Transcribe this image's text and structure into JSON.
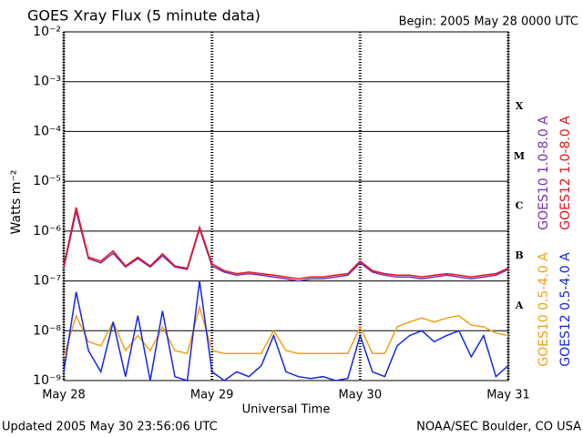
{
  "chart_data": {
    "type": "line",
    "title": "GOES Xray Flux (5 minute data)",
    "subtitle": "Begin:  2005 May 28 0000 UTC",
    "y_label": "Watts m⁻²",
    "x_label": "Universal Time",
    "footer_left": "Updated 2005 May 30 23:56:06 UTC",
    "footer_right": "NOAA/SEC Boulder, CO USA",
    "flare_classes": [
      "A",
      "B",
      "C",
      "M",
      "X"
    ],
    "log_y": true,
    "grid": true,
    "xlim": [
      0,
      72
    ],
    "xticks": [
      {
        "value": 0,
        "label": "May 28"
      },
      {
        "value": 24,
        "label": "May 29"
      },
      {
        "value": 48,
        "label": "May 30"
      },
      {
        "value": 72,
        "label": "May 31"
      }
    ],
    "ylim": [
      1e-09,
      0.01
    ],
    "yticks": [
      {
        "value": 1e-09,
        "label": "10⁻⁹"
      },
      {
        "value": 1e-08,
        "label": "10⁻⁸"
      },
      {
        "value": 1e-07,
        "label": "10⁻⁷"
      },
      {
        "value": 1e-06,
        "label": "10⁻⁶"
      },
      {
        "value": 1e-05,
        "label": "10⁻⁵"
      },
      {
        "value": 0.0001,
        "label": "10⁻⁴"
      },
      {
        "value": 0.001,
        "label": "10⁻³"
      },
      {
        "value": 0.01,
        "label": "10⁻²"
      }
    ],
    "x": [
      0,
      2,
      4,
      6,
      8,
      10,
      12,
      14,
      16,
      18,
      20,
      22,
      24,
      26,
      28,
      30,
      32,
      34,
      36,
      38,
      40,
      42,
      44,
      46,
      48,
      50,
      52,
      54,
      56,
      58,
      60,
      62,
      64,
      66,
      68,
      70,
      72
    ],
    "series": [
      {
        "name": "GOES10 1.0-8.0 A",
        "color": "#7a2fb5",
        "values": [
          1.8e-07,
          2.5e-06,
          2.8e-07,
          2.3e-07,
          3.6e-07,
          1.9e-07,
          2.8e-07,
          1.9e-07,
          3.2e-07,
          1.9e-07,
          1.7e-07,
          1.1e-06,
          2e-07,
          1.5e-07,
          1.3e-07,
          1.4e-07,
          1.3e-07,
          1.2e-07,
          1.1e-07,
          1e-07,
          1.1e-07,
          1.1e-07,
          1.2e-07,
          1.3e-07,
          2.3e-07,
          1.5e-07,
          1.3e-07,
          1.2e-07,
          1.2e-07,
          1.1e-07,
          1.2e-07,
          1.3e-07,
          1.2e-07,
          1.1e-07,
          1.2e-07,
          1.3e-07,
          1.7e-07
        ]
      },
      {
        "name": "GOES12 1.0-8.0 A",
        "color": "#e8141c",
        "values": [
          2e-07,
          3e-06,
          3e-07,
          2.5e-07,
          4e-07,
          2e-07,
          3e-07,
          2e-07,
          3.5e-07,
          2e-07,
          1.8e-07,
          1.2e-06,
          2.2e-07,
          1.6e-07,
          1.4e-07,
          1.5e-07,
          1.4e-07,
          1.3e-07,
          1.2e-07,
          1.1e-07,
          1.2e-07,
          1.2e-07,
          1.3e-07,
          1.4e-07,
          2.5e-07,
          1.6e-07,
          1.4e-07,
          1.3e-07,
          1.3e-07,
          1.2e-07,
          1.3e-07,
          1.4e-07,
          1.3e-07,
          1.2e-07,
          1.3e-07,
          1.4e-07,
          1.8e-07
        ]
      },
      {
        "name": "GOES10 0.5-4.0 A",
        "color": "#f0a018",
        "values": [
          3e-09,
          2e-08,
          6e-09,
          5e-09,
          1.5e-08,
          4e-09,
          8e-09,
          4e-09,
          1.2e-08,
          4e-09,
          3.5e-09,
          3e-08,
          4e-09,
          3.5e-09,
          3.5e-09,
          3.5e-09,
          3.5e-09,
          1e-08,
          4e-09,
          3.5e-09,
          3.5e-09,
          3.5e-09,
          3.5e-09,
          3.5e-09,
          1.2e-08,
          3.5e-09,
          3.5e-09,
          1.2e-08,
          1.5e-08,
          1.8e-08,
          1.5e-08,
          1.8e-08,
          2e-08,
          1.3e-08,
          1.2e-08,
          9e-09,
          8e-09
        ]
      },
      {
        "name": "GOES12 0.5-4.0 A",
        "color": "#1428e0",
        "values": [
          1.5e-09,
          6e-08,
          4e-09,
          1.5e-09,
          1.5e-08,
          1.2e-09,
          2e-08,
          1e-09,
          2.5e-08,
          1.2e-09,
          1e-09,
          1e-07,
          1.5e-09,
          1e-09,
          1.5e-09,
          1.2e-09,
          2e-09,
          8e-09,
          1.5e-09,
          1.2e-09,
          1.1e-09,
          1.2e-09,
          1e-09,
          1.1e-09,
          8e-09,
          1.5e-09,
          1.2e-09,
          5e-09,
          8e-09,
          1e-08,
          6e-09,
          8e-09,
          1e-08,
          3e-09,
          8e-09,
          1.2e-09,
          2e-09
        ]
      }
    ]
  }
}
